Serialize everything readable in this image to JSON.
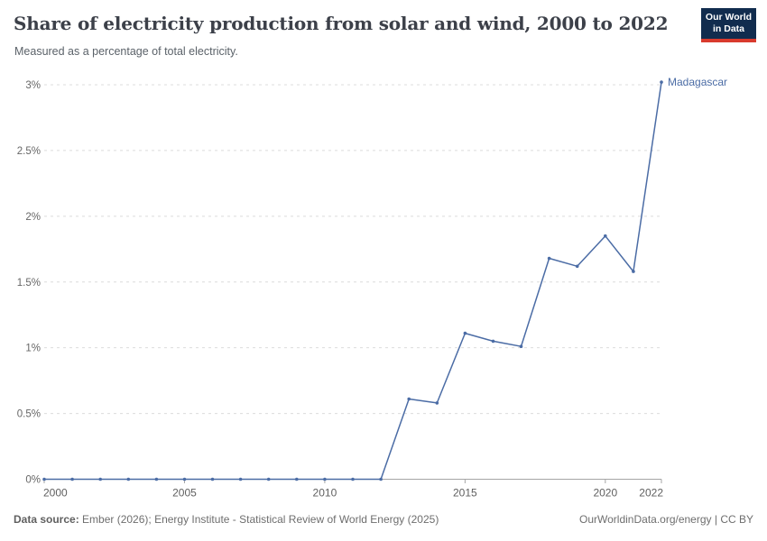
{
  "header": {
    "title": "Share of electricity production from solar and wind, 2000 to 2022",
    "subtitle": "Measured as a percentage of total electricity.",
    "logo": {
      "line1": "Our World",
      "line2": "in Data",
      "bg_color": "#112c4e",
      "accent_color": "#d93a2d"
    }
  },
  "chart_data": {
    "type": "line",
    "title": "Share of electricity production from solar and wind, 2000 to 2022",
    "x": [
      2000,
      2001,
      2002,
      2003,
      2004,
      2005,
      2006,
      2007,
      2008,
      2009,
      2010,
      2011,
      2012,
      2013,
      2014,
      2015,
      2016,
      2017,
      2018,
      2019,
      2020,
      2021,
      2022
    ],
    "series": [
      {
        "name": "Madagascar",
        "color": "#4b6ca5",
        "values": [
          0,
          0,
          0,
          0,
          0,
          0,
          0,
          0,
          0,
          0,
          0,
          0,
          0,
          0.61,
          0.58,
          1.11,
          1.05,
          1.01,
          1.68,
          1.62,
          1.85,
          1.58,
          3.02
        ]
      }
    ],
    "xlabel": "",
    "ylabel": "",
    "xlim": [
      2000,
      2022
    ],
    "ylim": [
      0,
      3
    ],
    "x_ticks": [
      2000,
      2005,
      2010,
      2015,
      2020,
      2022
    ],
    "y_ticks": [
      {
        "value": 0,
        "label": "0%"
      },
      {
        "value": 0.5,
        "label": "0.5%"
      },
      {
        "value": 1,
        "label": "1%"
      },
      {
        "value": 1.5,
        "label": "1.5%"
      },
      {
        "value": 2,
        "label": "2%"
      },
      {
        "value": 2.5,
        "label": "2.5%"
      },
      {
        "value": 3,
        "label": "3%"
      }
    ],
    "grid": "horizontal-dashed",
    "legend_position": "end-of-line-label"
  },
  "footer": {
    "source_label": "Data source:",
    "source_text": " Ember (2026); Energy Institute - Statistical Review of World Energy (2025)",
    "credit": "OurWorldinData.org/energy | CC BY"
  }
}
